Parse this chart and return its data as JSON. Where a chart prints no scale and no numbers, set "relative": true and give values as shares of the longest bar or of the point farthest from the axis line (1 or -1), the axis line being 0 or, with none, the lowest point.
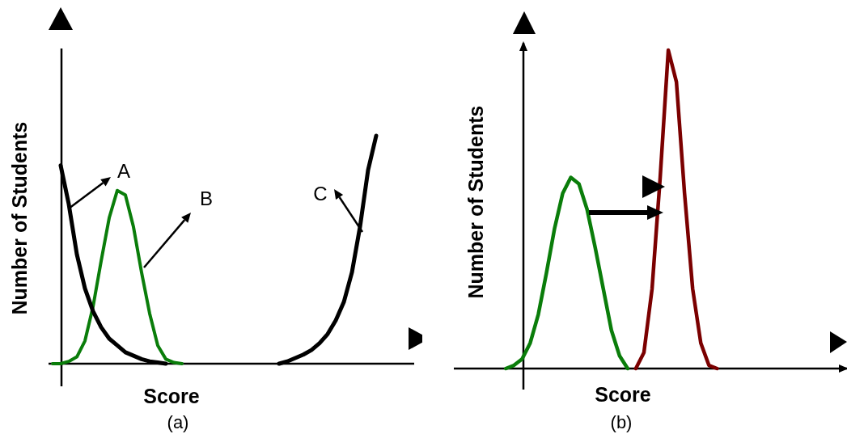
{
  "chart_data": [
    {
      "type": "line",
      "relative": true,
      "xlabel": "Score",
      "ylabel": "Number of Students",
      "marker": "none",
      "annotations": [
        "A",
        "B",
        "C",
        "(a)"
      ],
      "categories": [
        null,
        null,
        null,
        null,
        null,
        null,
        null,
        null,
        null,
        null,
        null,
        null,
        null,
        null,
        null,
        null,
        null,
        null,
        null,
        null,
        null,
        null,
        null,
        null,
        null,
        null,
        null,
        null,
        null,
        null,
        null,
        null,
        null,
        null,
        null,
        null,
        null,
        null,
        null,
        null,
        null,
        null,
        null,
        null,
        null
      ],
      "series": [
        {
          "color": "#000000",
          "values": [
            null,
            0.87,
            0.7,
            0.48,
            0.33,
            0.23,
            0.16,
            0.11,
            0.08,
            0.05,
            0.035,
            0.02,
            0.01,
            0.005,
            0,
            null,
            null,
            null,
            null,
            null,
            null,
            null,
            null,
            null,
            null,
            null,
            null,
            null,
            null,
            null,
            null,
            null,
            null,
            null,
            null,
            null,
            null,
            null,
            null,
            null,
            null,
            null,
            null,
            null,
            null
          ]
        },
        {
          "color": "#0a7d0a",
          "values": [
            0,
            0,
            0.01,
            0.03,
            0.1,
            0.25,
            0.45,
            0.64,
            0.76,
            0.74,
            0.6,
            0.4,
            0.22,
            0.08,
            0.02,
            0.005,
            0,
            null,
            null,
            null,
            null,
            null,
            null,
            null,
            null,
            null,
            null,
            null,
            null,
            null,
            null,
            null,
            null,
            null,
            null,
            null,
            null,
            null,
            null,
            null,
            null,
            null,
            null,
            null,
            null
          ]
        },
        {
          "color": "#000000",
          "values": [
            null,
            null,
            null,
            null,
            null,
            null,
            null,
            null,
            null,
            null,
            null,
            null,
            null,
            null,
            null,
            null,
            null,
            null,
            null,
            null,
            null,
            null,
            null,
            null,
            null,
            null,
            null,
            null,
            0,
            0.01,
            0.025,
            0.04,
            0.06,
            0.09,
            0.13,
            0.19,
            0.27,
            0.4,
            0.6,
            0.85,
            1,
            null,
            null,
            null,
            null
          ]
        }
      ]
    },
    {
      "type": "line",
      "relative": true,
      "xlabel": "Score",
      "ylabel": "Number of Students",
      "marker": "none",
      "annotations": [
        "(b)"
      ],
      "categories": [
        null,
        null,
        null,
        null,
        null,
        null,
        null,
        null,
        null,
        null,
        null,
        null,
        null,
        null,
        null,
        null,
        null,
        null,
        null,
        null,
        null,
        null,
        null,
        null,
        null,
        null,
        null,
        null,
        null,
        null,
        null,
        null,
        null,
        null,
        null,
        null,
        null,
        null,
        null,
        null,
        null,
        null,
        null,
        null,
        null,
        null,
        null,
        null
      ],
      "series": [
        {
          "color": "#0a7d0a",
          "values": [
            null,
            null,
            null,
            null,
            null,
            null,
            0,
            0.01,
            0.03,
            0.08,
            0.17,
            0.3,
            0.44,
            0.55,
            0.6,
            0.58,
            0.5,
            0.38,
            0.25,
            0.12,
            0.04,
            0,
            null,
            null,
            null,
            null,
            null,
            null,
            null,
            null,
            null,
            null,
            null,
            null,
            null,
            null,
            null,
            null,
            null,
            null,
            null,
            null,
            null,
            null,
            null,
            null,
            null,
            null
          ]
        },
        {
          "color": "#7b0000",
          "values": [
            null,
            null,
            null,
            null,
            null,
            null,
            null,
            null,
            null,
            null,
            null,
            null,
            null,
            null,
            null,
            null,
            null,
            null,
            null,
            null,
            null,
            null,
            0,
            0.05,
            0.25,
            0.6,
            1,
            0.9,
            0.55,
            0.25,
            0.08,
            0.01,
            0,
            null,
            null,
            null,
            null,
            null,
            null,
            null,
            null,
            null,
            null,
            null,
            null,
            null,
            null,
            null
          ]
        }
      ]
    }
  ]
}
